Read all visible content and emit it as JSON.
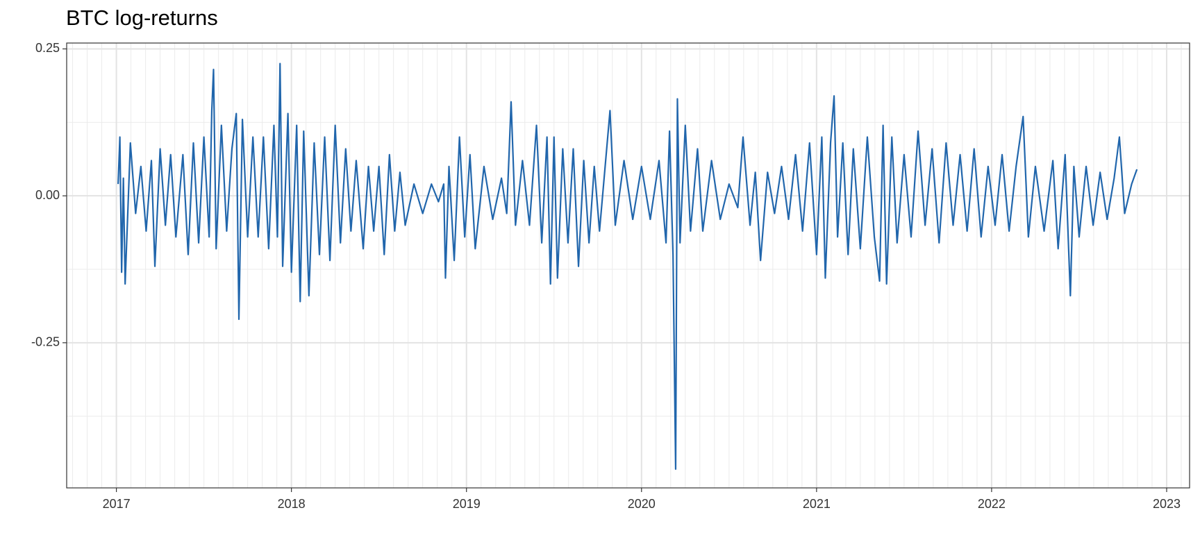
{
  "chart_data": {
    "type": "line",
    "title": "BTC log-returns",
    "color": "#2166ac",
    "grid": true,
    "xlim": [
      2016.716,
      2023.131
    ],
    "xticks": [
      2017,
      2018,
      2019,
      2020,
      2021,
      2022,
      2023
    ],
    "ylim": [
      -0.497,
      0.26
    ],
    "yticks": [
      {
        "value": -0.25,
        "label": "-0.25"
      },
      {
        "value": 0,
        "label": "0.00"
      },
      0.25
    ],
    "x": [
      2017.01,
      2017.02,
      2017.03,
      2017.04,
      2017.05,
      2017.08,
      2017.11,
      2017.14,
      2017.17,
      2017.2,
      2017.22,
      2017.25,
      2017.28,
      2017.31,
      2017.34,
      2017.38,
      2017.41,
      2017.44,
      2017.47,
      2017.5,
      2017.53,
      2017.545,
      2017.555,
      2017.57,
      2017.6,
      2017.63,
      2017.66,
      2017.685,
      2017.7,
      2017.72,
      2017.75,
      2017.78,
      2017.81,
      2017.84,
      2017.87,
      2017.9,
      2017.92,
      2017.935,
      2017.95,
      2017.98,
      2018.0,
      2018.03,
      2018.05,
      2018.07,
      2018.1,
      2018.13,
      2018.16,
      2018.19,
      2018.22,
      2018.25,
      2018.28,
      2018.31,
      2018.34,
      2018.37,
      2018.41,
      2018.44,
      2018.47,
      2018.5,
      2018.53,
      2018.56,
      2018.59,
      2018.62,
      2018.65,
      2018.7,
      2018.75,
      2018.8,
      2018.84,
      2018.87,
      2018.88,
      2018.9,
      2018.93,
      2018.96,
      2018.99,
      2019.02,
      2019.05,
      2019.1,
      2019.15,
      2019.2,
      2019.23,
      2019.255,
      2019.28,
      2019.32,
      2019.36,
      2019.4,
      2019.43,
      2019.46,
      2019.48,
      2019.5,
      2019.52,
      2019.55,
      2019.58,
      2019.61,
      2019.64,
      2019.67,
      2019.7,
      2019.73,
      2019.76,
      2019.82,
      2019.85,
      2019.9,
      2019.95,
      2020.0,
      2020.05,
      2020.1,
      2020.14,
      2020.16,
      2020.18,
      2020.195,
      2020.205,
      2020.22,
      2020.25,
      2020.28,
      2020.32,
      2020.35,
      2020.4,
      2020.45,
      2020.5,
      2020.55,
      2020.58,
      2020.62,
      2020.65,
      2020.68,
      2020.72,
      2020.76,
      2020.8,
      2020.84,
      2020.88,
      2020.92,
      2020.96,
      2021.0,
      2021.03,
      2021.05,
      2021.08,
      2021.1,
      2021.12,
      2021.15,
      2021.18,
      2021.21,
      2021.25,
      2021.29,
      2021.33,
      2021.36,
      2021.38,
      2021.4,
      2021.43,
      2021.46,
      2021.5,
      2021.54,
      2021.58,
      2021.62,
      2021.66,
      2021.7,
      2021.74,
      2021.78,
      2021.82,
      2021.86,
      2021.9,
      2021.94,
      2021.98,
      2022.02,
      2022.06,
      2022.1,
      2022.14,
      2022.18,
      2022.21,
      2022.25,
      2022.3,
      2022.35,
      2022.38,
      2022.42,
      2022.45,
      2022.47,
      2022.5,
      2022.54,
      2022.58,
      2022.62,
      2022.66,
      2022.7,
      2022.73,
      2022.76,
      2022.8,
      2022.83
    ],
    "values": [
      0.02,
      0.1,
      -0.13,
      0.03,
      -0.15,
      0.09,
      -0.03,
      0.05,
      -0.06,
      0.06,
      -0.12,
      0.08,
      -0.05,
      0.07,
      -0.07,
      0.07,
      -0.1,
      0.09,
      -0.08,
      0.1,
      -0.07,
      0.145,
      0.215,
      -0.09,
      0.12,
      -0.06,
      0.08,
      0.14,
      -0.21,
      0.13,
      -0.07,
      0.1,
      -0.07,
      0.1,
      -0.09,
      0.12,
      -0.07,
      0.225,
      -0.12,
      0.14,
      -0.13,
      0.12,
      -0.18,
      0.11,
      -0.17,
      0.09,
      -0.1,
      0.1,
      -0.11,
      0.12,
      -0.08,
      0.08,
      -0.06,
      0.06,
      -0.09,
      0.05,
      -0.06,
      0.05,
      -0.1,
      0.07,
      -0.06,
      0.04,
      -0.05,
      0.02,
      -0.03,
      0.02,
      -0.01,
      0.02,
      -0.14,
      0.05,
      -0.11,
      0.1,
      -0.07,
      0.07,
      -0.09,
      0.05,
      -0.04,
      0.03,
      -0.03,
      0.16,
      -0.05,
      0.06,
      -0.05,
      0.12,
      -0.08,
      0.1,
      -0.15,
      0.1,
      -0.14,
      0.08,
      -0.08,
      0.08,
      -0.12,
      0.06,
      -0.08,
      0.05,
      -0.06,
      0.145,
      -0.05,
      0.06,
      -0.04,
      0.05,
      -0.04,
      0.06,
      -0.08,
      0.11,
      -0.1,
      -0.465,
      0.165,
      -0.08,
      0.12,
      -0.06,
      0.08,
      -0.06,
      0.06,
      -0.04,
      0.02,
      -0.02,
      0.1,
      -0.05,
      0.04,
      -0.11,
      0.04,
      -0.03,
      0.05,
      -0.04,
      0.07,
      -0.06,
      0.09,
      -0.1,
      0.1,
      -0.14,
      0.09,
      0.17,
      -0.07,
      0.09,
      -0.1,
      0.08,
      -0.09,
      0.1,
      -0.07,
      -0.145,
      0.12,
      -0.15,
      0.1,
      -0.08,
      0.07,
      -0.07,
      0.11,
      -0.05,
      0.08,
      -0.08,
      0.09,
      -0.05,
      0.07,
      -0.06,
      0.08,
      -0.07,
      0.05,
      -0.05,
      0.07,
      -0.06,
      0.05,
      0.135,
      -0.07,
      0.05,
      -0.06,
      0.06,
      -0.09,
      0.07,
      -0.17,
      0.05,
      -0.07,
      0.05,
      -0.05,
      0.04,
      -0.04,
      0.03,
      0.1,
      -0.03,
      0.02,
      0.045
    ]
  }
}
